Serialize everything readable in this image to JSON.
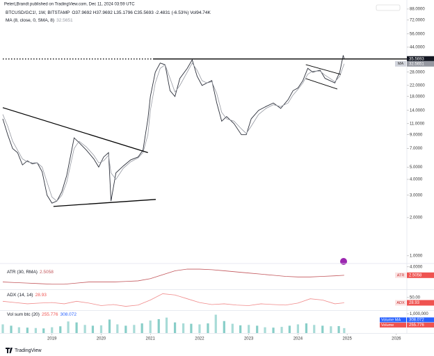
{
  "publisher": "PeterLBrandt published on TradingView.com, Dec 11, 2024 03:59 UTC",
  "footer": "TradingView",
  "chart_data": [
    {
      "type": "line",
      "title": "BTCUSD/GC1!, 1W, BITSTAMP",
      "ohlc": "O37.9692 H37.9692 L35.1796 C35.5693 -2.4831 (-6.53%) Vol94.74K",
      "log_scale": true,
      "x": [
        2018.0,
        2018.1,
        2018.2,
        2018.3,
        2018.4,
        2018.5,
        2018.6,
        2018.7,
        2018.8,
        2018.9,
        2019.0,
        2019.1,
        2019.2,
        2019.3,
        2019.45,
        2019.55,
        2019.7,
        2019.85,
        2019.95,
        2020.05,
        2020.15,
        2020.2,
        2020.3,
        2020.45,
        2020.6,
        2020.75,
        2020.85,
        2020.95,
        2021.0,
        2021.1,
        2021.2,
        2021.3,
        2021.4,
        2021.5,
        2021.6,
        2021.75,
        2021.85,
        2021.95,
        2022.05,
        2022.15,
        2022.25,
        2022.35,
        2022.45,
        2022.55,
        2022.7,
        2022.85,
        2022.95,
        2023.05,
        2023.2,
        2023.35,
        2023.5,
        2023.65,
        2023.8,
        2023.9,
        2024.0,
        2024.1,
        2024.2,
        2024.3,
        2024.45,
        2024.55,
        2024.65,
        2024.75,
        2024.85,
        2024.92,
        2024.94
      ],
      "series": [
        {
          "name": "BTCUSD/GC1!",
          "color": "#2a2e39",
          "values": [
            12.0,
            9.0,
            7.0,
            6.5,
            5.2,
            5.6,
            5.3,
            5.4,
            4.6,
            3.0,
            2.6,
            2.7,
            3.2,
            4.3,
            8.5,
            7.8,
            6.8,
            5.8,
            5.0,
            6.0,
            6.5,
            2.7,
            4.5,
            5.1,
            5.7,
            6.0,
            6.8,
            12.0,
            18.0,
            28.0,
            33.0,
            32.0,
            20.0,
            18.0,
            25.0,
            30.0,
            35.0,
            26.0,
            22.0,
            23.0,
            24.0,
            16.0,
            11.5,
            12.5,
            11.0,
            9.0,
            9.0,
            12.0,
            14.0,
            15.0,
            16.0,
            14.5,
            17.0,
            20.0,
            21.0,
            24.0,
            30.0,
            28.0,
            29.0,
            25.0,
            24.0,
            23.0,
            28.0,
            38.0,
            35.5693
          ]
        },
        {
          "name": "MA (8, close, 0, SMA, 8)",
          "short_name": "MA",
          "color": "#9598a1",
          "values": [
            13.0,
            10.5,
            8.0,
            6.8,
            5.8,
            5.5,
            5.4,
            5.4,
            5.0,
            3.8,
            2.9,
            2.7,
            3.0,
            3.8,
            7.0,
            8.0,
            7.2,
            6.2,
            5.4,
            5.6,
            6.2,
            4.5,
            4.0,
            4.9,
            5.5,
            5.9,
            6.5,
            9.0,
            14.0,
            23.0,
            30.0,
            32.0,
            25.0,
            19.5,
            22.0,
            28.0,
            33.0,
            29.0,
            24.0,
            23.0,
            23.5,
            19.0,
            13.5,
            12.0,
            11.5,
            10.0,
            9.2,
            10.5,
            13.0,
            14.5,
            15.5,
            15.0,
            16.0,
            18.5,
            20.5,
            23.0,
            27.0,
            28.5,
            28.5,
            26.5,
            25.0,
            23.5,
            26.0,
            31.0,
            32.5651
          ]
        }
      ],
      "trendlines": [
        {
          "x": [
            2018.0,
            2020.95
          ],
          "values": [
            14.7,
            6.5
          ]
        },
        {
          "x": [
            2019.03,
            2021.11
          ],
          "values": [
            2.45,
            2.78
          ]
        },
        {
          "x": [
            2024.16,
            2024.87
          ],
          "values": [
            32.1,
            26.9
          ]
        },
        {
          "x": [
            2024.16,
            2024.8
          ],
          "values": [
            24.9,
            20.6
          ]
        }
      ],
      "xlim": [
        2018.0,
        2026.2
      ],
      "ylim": [
        0.88,
        97.3
      ],
      "yticks": [
        {
          "value": 88,
          "label": "88.0000"
        },
        {
          "value": 72,
          "label": "72.0000"
        },
        {
          "value": 56,
          "label": "56.0000"
        },
        {
          "value": 44,
          "label": "44.0000"
        },
        {
          "value": 28,
          "label": "28.0000"
        },
        {
          "value": 22,
          "label": "22.0000"
        },
        {
          "value": 18,
          "label": "18.0000"
        },
        {
          "value": 14,
          "label": "14.0000"
        },
        {
          "value": 11,
          "label": "11.0000"
        },
        {
          "value": 9,
          "label": "9.0000"
        },
        {
          "value": 7,
          "label": "7.0000"
        },
        {
          "value": 5,
          "label": "5.0000"
        },
        {
          "value": 4,
          "label": "4.0000"
        },
        {
          "value": 3,
          "label": "3.0000"
        },
        {
          "value": 2,
          "label": "2.0000"
        },
        {
          "value": 1,
          "label": "1.0000"
        }
      ]
    },
    {
      "type": "line",
      "x": [
        2018.0,
        2018.25,
        2018.5,
        2018.75,
        2019.0,
        2019.25,
        2019.5,
        2019.75,
        2020.0,
        2020.25,
        2020.5,
        2020.75,
        2021.0,
        2021.25,
        2021.5,
        2021.75,
        2022.0,
        2022.25,
        2022.5,
        2022.75,
        2023.0,
        2023.25,
        2023.5,
        2023.75,
        2024.0,
        2024.25,
        2024.5,
        2024.75,
        2024.94
      ],
      "series": [
        {
          "name": "ATR (30, RMA)",
          "short_name": "ATR",
          "color": "#c2555a",
          "values": [
            1.3,
            1.2,
            1.1,
            1.0,
            0.9,
            0.9,
            1.1,
            1.3,
            1.3,
            1.3,
            1.4,
            1.5,
            1.9,
            2.6,
            3.3,
            3.6,
            3.6,
            3.5,
            3.3,
            3.1,
            2.9,
            2.7,
            2.5,
            2.3,
            2.2,
            2.2,
            2.3,
            2.4,
            2.5058
          ]
        }
      ],
      "xlim": [
        2018.0,
        2026.2
      ],
      "ylim": [
        0,
        4.6
      ],
      "yticks": [
        {
          "value": 4,
          "label": "4.0000"
        }
      ]
    },
    {
      "type": "line",
      "x": [
        2018.0,
        2018.25,
        2018.5,
        2018.75,
        2019.0,
        2019.25,
        2019.5,
        2019.75,
        2020.0,
        2020.25,
        2020.5,
        2020.75,
        2021.0,
        2021.25,
        2021.5,
        2021.75,
        2022.0,
        2022.25,
        2022.5,
        2022.75,
        2023.0,
        2023.25,
        2023.5,
        2023.75,
        2024.0,
        2024.25,
        2024.5,
        2024.75,
        2024.94
      ],
      "series": [
        {
          "name": "ADX (14, 14)",
          "short_name": "ADX",
          "color": "#f08a8a",
          "values": [
            35,
            30,
            25,
            28,
            30,
            25,
            35,
            28,
            18,
            22,
            15,
            20,
            40,
            65,
            60,
            45,
            30,
            22,
            25,
            20,
            18,
            25,
            22,
            20,
            28,
            45,
            40,
            25,
            28.93
          ]
        }
      ],
      "xlim": [
        2018.0,
        2026.2
      ],
      "ylim": [
        0,
        80
      ],
      "yticks": [
        {
          "value": 50,
          "label": "50.00"
        }
      ]
    },
    {
      "type": "bar",
      "title": "Vol sum btc (20)",
      "x": [
        2018.0,
        2018.17,
        2018.33,
        2018.5,
        2018.67,
        2018.83,
        2019.0,
        2019.17,
        2019.33,
        2019.5,
        2019.67,
        2019.83,
        2020.0,
        2020.17,
        2020.33,
        2020.5,
        2020.67,
        2020.83,
        2021.0,
        2021.17,
        2021.33,
        2021.5,
        2021.67,
        2021.83,
        2022.0,
        2022.17,
        2022.33,
        2022.5,
        2022.67,
        2022.83,
        2023.0,
        2023.17,
        2023.33,
        2023.5,
        2023.67,
        2023.83,
        2024.0,
        2024.17,
        2024.33,
        2024.5,
        2024.67,
        2024.83,
        2024.94
      ],
      "series": [
        {
          "name": "Volume",
          "color": "#26a69a",
          "values": [
            450000,
            380000,
            300000,
            280000,
            260000,
            240000,
            300000,
            350000,
            600000,
            550000,
            420000,
            380000,
            400000,
            700000,
            450000,
            380000,
            420000,
            500000,
            650000,
            720000,
            800000,
            550000,
            500000,
            480000,
            450000,
            500000,
            950000,
            620000,
            480000,
            400000,
            420000,
            380000,
            300000,
            280000,
            320000,
            380000,
            450000,
            500000,
            420000,
            380000,
            350000,
            360000,
            255776
          ]
        }
      ],
      "tags": [
        {
          "name": "Volume MA",
          "label": "308.072",
          "color": "#2962ff"
        },
        {
          "name": "Volume",
          "label": "255.776",
          "color": "#ef5350"
        }
      ],
      "xlim": [
        2018.0,
        2026.2
      ],
      "xticks": [
        2019,
        2020,
        2021,
        2022,
        2023,
        2024,
        2025,
        2026
      ],
      "ylim": [
        0,
        1150000
      ],
      "yticks": [
        {
          "value": 1000000,
          "label": "1,000,000"
        }
      ]
    }
  ]
}
